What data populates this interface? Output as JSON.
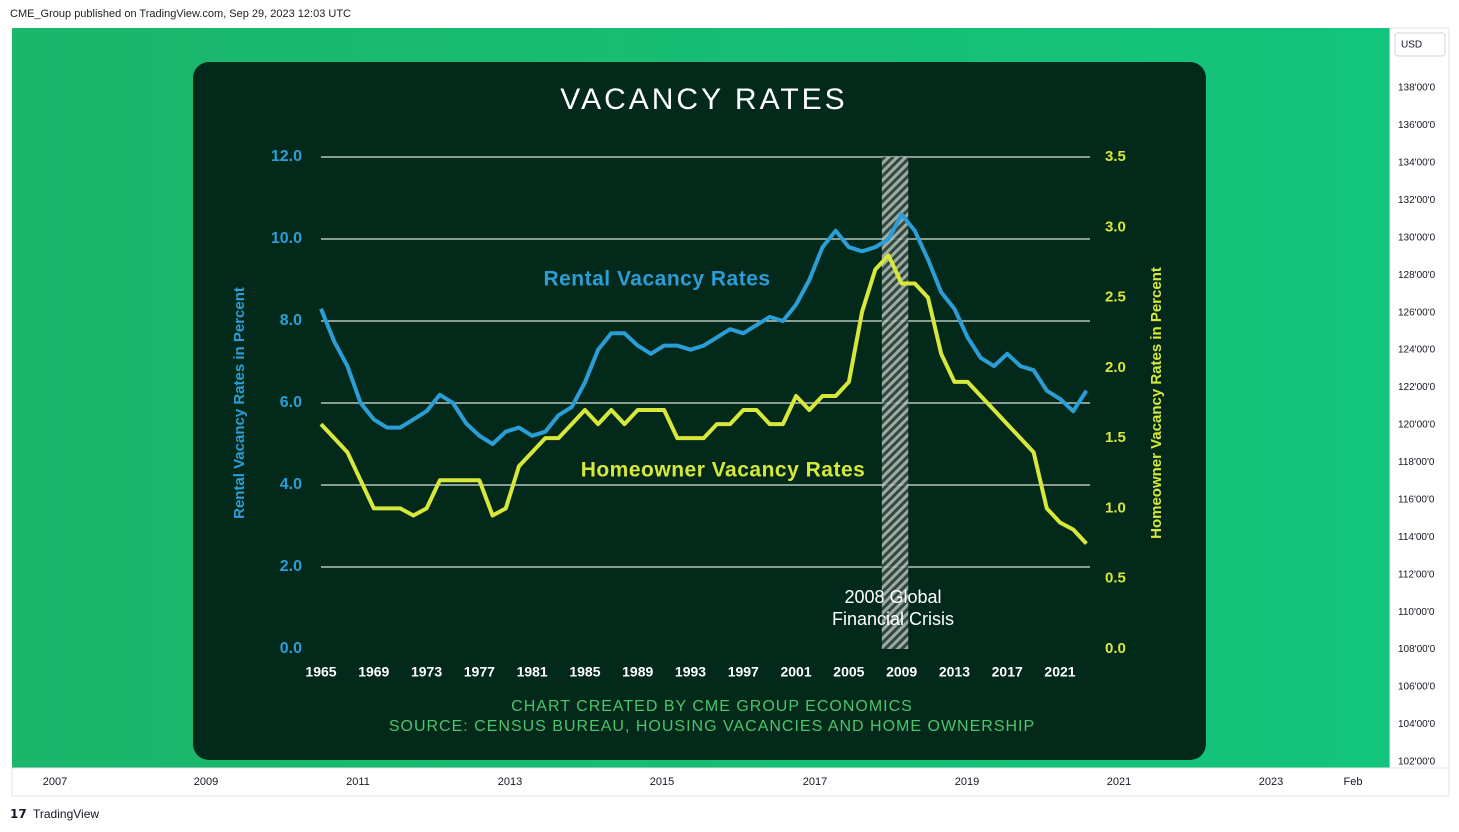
{
  "header": {
    "text": "CME_Group published on TradingView.com, Sep 29, 2023 12:03 UTC"
  },
  "currency": "USD",
  "price_axis": {
    "labels": [
      "138'00'0",
      "136'00'0",
      "134'00'0",
      "132'00'0",
      "130'00'0",
      "128'00'0",
      "126'00'0",
      "124'00'0",
      "122'00'0",
      "120'00'0",
      "118'00'0",
      "116'00'0",
      "114'00'0",
      "112'00'0",
      "110'00'0",
      "108'00'0",
      "106'00'0",
      "104'00'0",
      "102'00'0"
    ]
  },
  "time_axis": {
    "labels": [
      "2007",
      "2009",
      "2011",
      "2013",
      "2015",
      "2017",
      "2019",
      "2021",
      "2023",
      "Feb"
    ]
  },
  "footer": {
    "brand": "TradingView"
  },
  "chart_data": {
    "type": "line",
    "title": "VACANCY RATES",
    "y_label": "Rental Vacancy Rates in Percent",
    "y2_label": "Homeowner Vacancy Rates in Percent",
    "credits": [
      "CHART CREATED BY CME GROUP ECONOMICS",
      "SOURCE: CENSUS BUREAU, HOUSING VACANCIES AND HOME OWNERSHIP"
    ],
    "x": [
      1965,
      1966,
      1967,
      1968,
      1969,
      1970,
      1971,
      1972,
      1973,
      1974,
      1975,
      1976,
      1977,
      1978,
      1979,
      1980,
      1981,
      1982,
      1983,
      1984,
      1985,
      1986,
      1987,
      1988,
      1989,
      1990,
      1991,
      1992,
      1993,
      1994,
      1995,
      1996,
      1997,
      1998,
      1999,
      2000,
      2001,
      2002,
      2003,
      2004,
      2005,
      2006,
      2007,
      2008,
      2009,
      2010,
      2011,
      2012,
      2013,
      2014,
      2015,
      2016,
      2017,
      2018,
      2019,
      2020,
      2021,
      2022,
      2023
    ],
    "series": [
      {
        "name": "Rental Vacancy Rates",
        "color": "#2b9ed8",
        "values": [
          8.3,
          7.5,
          6.9,
          6.0,
          5.6,
          5.4,
          5.4,
          5.6,
          5.8,
          6.2,
          6.0,
          5.5,
          5.2,
          5.0,
          5.3,
          5.4,
          5.2,
          5.3,
          5.7,
          5.9,
          6.5,
          7.3,
          7.7,
          7.7,
          7.4,
          7.2,
          7.4,
          7.4,
          7.3,
          7.4,
          7.6,
          7.8,
          7.7,
          7.9,
          8.1,
          8.0,
          8.4,
          9.0,
          9.8,
          10.2,
          9.8,
          9.7,
          9.8,
          10.0,
          10.6,
          10.2,
          9.5,
          8.7,
          8.3,
          7.6,
          7.1,
          6.9,
          7.2,
          6.9,
          6.8,
          6.3,
          6.1,
          5.8,
          6.3
        ]
      },
      {
        "name": "Homeowner Vacancy Rates",
        "color": "#d7e83a",
        "axis": "y2",
        "values": [
          1.6,
          1.5,
          1.4,
          1.2,
          1.0,
          1.0,
          1.0,
          0.95,
          1.0,
          1.2,
          1.2,
          1.2,
          1.2,
          0.95,
          1.0,
          1.3,
          1.4,
          1.5,
          1.5,
          1.6,
          1.7,
          1.6,
          1.7,
          1.6,
          1.7,
          1.7,
          1.7,
          1.5,
          1.5,
          1.5,
          1.6,
          1.6,
          1.7,
          1.7,
          1.6,
          1.6,
          1.8,
          1.7,
          1.8,
          1.8,
          1.9,
          2.4,
          2.7,
          2.8,
          2.6,
          2.6,
          2.5,
          2.1,
          1.9,
          1.9,
          1.8,
          1.7,
          1.6,
          1.5,
          1.4,
          1.0,
          0.9,
          0.85,
          0.75
        ]
      }
    ],
    "shade": {
      "range": [
        2007.5,
        2009.5
      ],
      "label_lines": [
        "2008 Global",
        "Financial Crisis"
      ]
    },
    "xlim": [
      1965,
      2023.5
    ],
    "xticks": [
      1965,
      1969,
      1973,
      1977,
      1981,
      1985,
      1989,
      1993,
      1997,
      2001,
      2005,
      2009,
      2013,
      2017,
      2021
    ],
    "ylim": [
      0,
      12
    ],
    "yticks": [
      {
        "value": 0,
        "label": "0.0"
      },
      {
        "value": 2,
        "label": "2.0"
      },
      {
        "value": 4,
        "label": "4.0"
      },
      {
        "value": 6,
        "label": "6.0"
      },
      {
        "value": 8,
        "label": "8.0"
      },
      {
        "value": 10,
        "label": "10.0"
      },
      {
        "value": 12,
        "label": "12.0"
      }
    ],
    "y2lim": [
      0,
      3.5
    ],
    "y2ticks": [
      {
        "value": 0,
        "label": "0.0"
      },
      0.5,
      {
        "value": 1,
        "label": "1.0"
      },
      1.5,
      {
        "value": 2,
        "label": "2.0"
      },
      2.5,
      {
        "value": 3,
        "label": "3.0"
      },
      3.5
    ],
    "grid": true
  }
}
